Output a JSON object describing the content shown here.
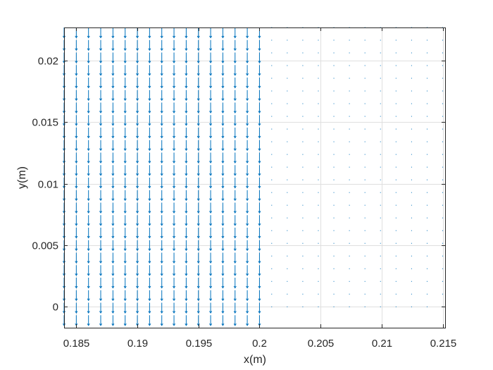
{
  "chart_data": {
    "type": "quiver",
    "xlabel": "x(m)",
    "ylabel": "y(m)",
    "xlim": [
      0.184,
      0.2152
    ],
    "ylim": [
      -0.0017,
      0.0227
    ],
    "xticks": [
      0.185,
      0.19,
      0.195,
      0.2,
      0.205,
      0.21,
      0.215
    ],
    "xtick_labels": [
      "0.185",
      "0.19",
      "0.195",
      "0.2",
      "0.205",
      "0.21",
      "0.215"
    ],
    "yticks": [
      0,
      0.005,
      0.01,
      0.015,
      0.02
    ],
    "ytick_labels": [
      "0",
      "0.005",
      "0.01",
      "0.015",
      "0.02"
    ],
    "grid": true,
    "box": true,
    "arrow_color": "#0072BD",
    "grid_color": "#dfdfdf",
    "left_region": {
      "x_from": 0.184,
      "x_to": 0.2,
      "columns": 17,
      "y_from": -0.0017,
      "y_to": 0.0227,
      "rows": 25,
      "u": 0,
      "v": -1
    },
    "right_region": {
      "x_from": 0.201,
      "x_to": 0.215,
      "columns": 12,
      "y_from": 0,
      "y_to": 0.0227,
      "rows": 23,
      "u": 0,
      "v": 0
    }
  }
}
